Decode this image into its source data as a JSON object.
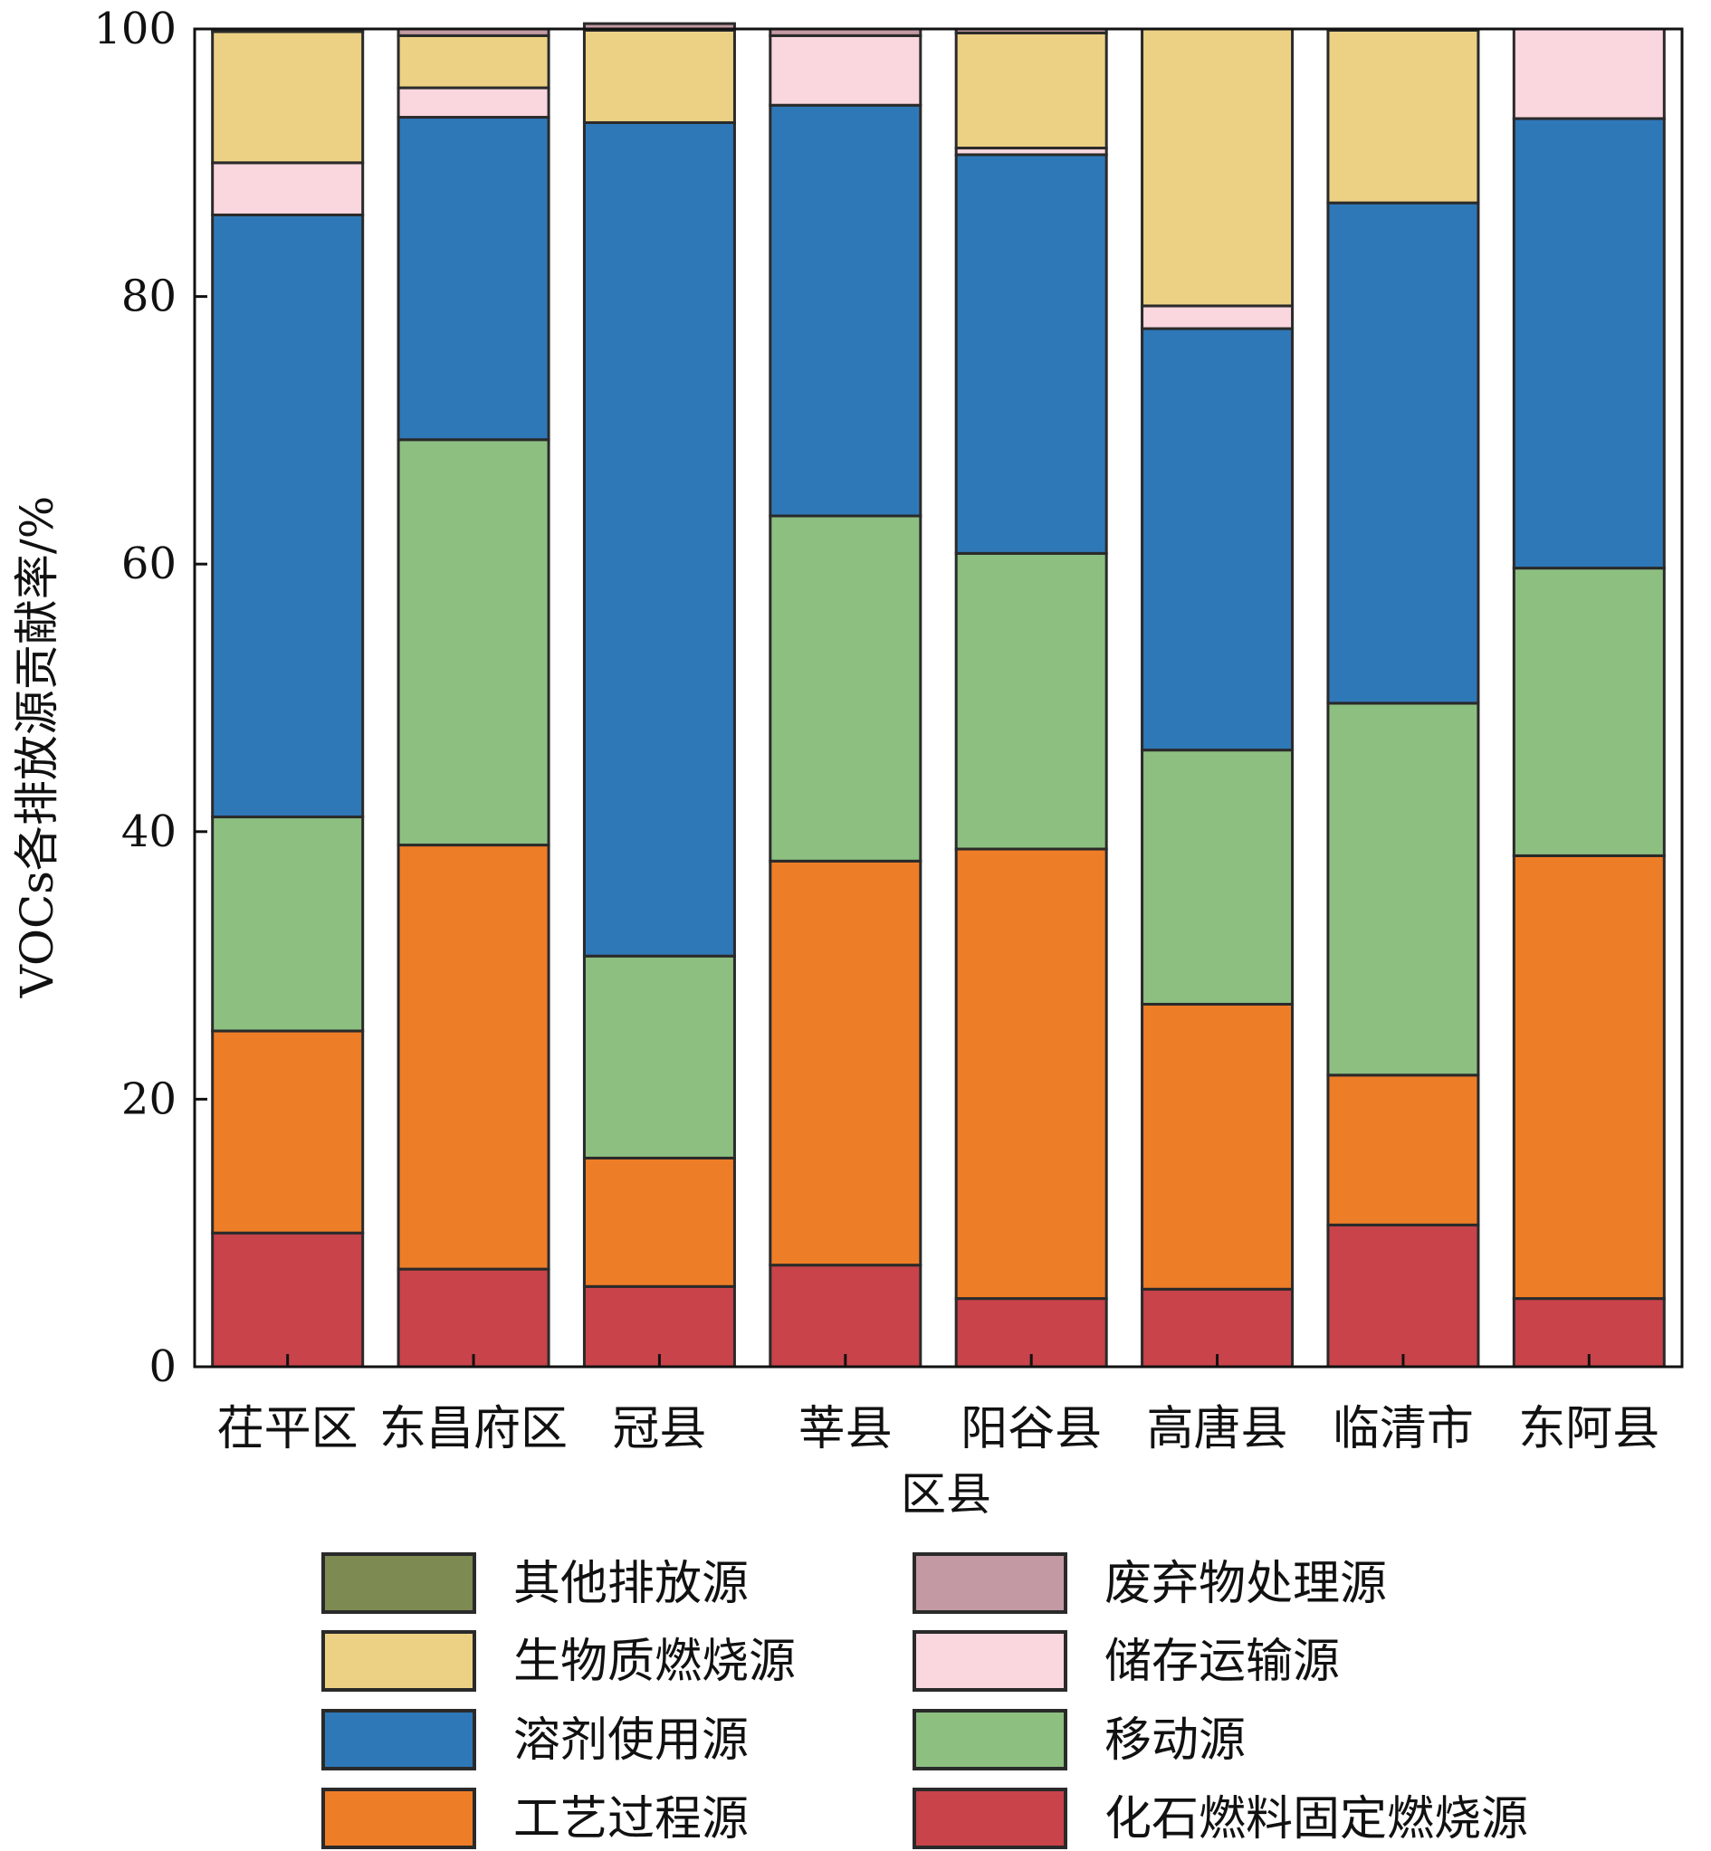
{
  "chart_data": {
    "type": "bar",
    "stacked": true,
    "title": "",
    "xlabel": "区县",
    "ylabel": "VOCs各排放源贡献率/%",
    "ylim": [
      0,
      100
    ],
    "yticks": [
      "0",
      "20",
      "40",
      "60",
      "80",
      "100"
    ],
    "grid": false,
    "legend_position": "bottom",
    "categories": [
      "茌平区",
      "东昌府区",
      "冠县",
      "莘县",
      "阳谷县",
      "高唐县",
      "临清市",
      "东阿县"
    ],
    "series": [
      {
        "name": "化石燃料固定燃烧源",
        "color": "#c8434a",
        "values": [
          10.0,
          7.3,
          6.0,
          7.6,
          5.1,
          5.8,
          10.6,
          5.1
        ]
      },
      {
        "name": "工艺过程源",
        "color": "#ee7d27",
        "values": [
          15.1,
          31.7,
          9.6,
          30.2,
          33.6,
          21.3,
          11.2,
          33.1
        ]
      },
      {
        "name": "移动源",
        "color": "#8dbf81",
        "values": [
          16.0,
          30.3,
          15.1,
          25.8,
          22.1,
          19.0,
          27.8,
          21.5
        ]
      },
      {
        "name": "溶剂使用源",
        "color": "#2f78b8",
        "values": [
          45.0,
          24.1,
          62.3,
          30.7,
          29.8,
          31.5,
          37.4,
          33.6
        ]
      },
      {
        "name": "储存运输源",
        "color": "#fad6df",
        "values": [
          3.9,
          2.2,
          0.0,
          5.2,
          0.5,
          1.7,
          0.0,
          6.7
        ]
      },
      {
        "name": "生物质燃烧源",
        "color": "#ecd185",
        "values": [
          9.8,
          3.9,
          6.9,
          0.0,
          8.6,
          20.7,
          12.9,
          0.0
        ]
      },
      {
        "name": "废弃物处理源",
        "color": "#c39aa4",
        "values": [
          0.2,
          0.5,
          0.5,
          0.5,
          0.3,
          0.0,
          0.1,
          0.0
        ]
      },
      {
        "name": "其他排放源",
        "color": "#7d8a52",
        "values": [
          0.0,
          0.0,
          0.0,
          0.0,
          0.0,
          0.0,
          0.0,
          0.0
        ]
      }
    ],
    "legend": [
      {
        "name": "其他排放源",
        "color": "#7d8a52"
      },
      {
        "name": "废弃物处理源",
        "color": "#c39aa4"
      },
      {
        "name": "生物质燃烧源",
        "color": "#ecd185"
      },
      {
        "name": "储存运输源",
        "color": "#fad6df"
      },
      {
        "name": "溶剂使用源",
        "color": "#2f78b8"
      },
      {
        "name": "移动源",
        "color": "#8dbf81"
      },
      {
        "name": "工艺过程源",
        "color": "#ee7d27"
      },
      {
        "name": "化石燃料固定燃烧源",
        "color": "#c8434a"
      }
    ]
  }
}
